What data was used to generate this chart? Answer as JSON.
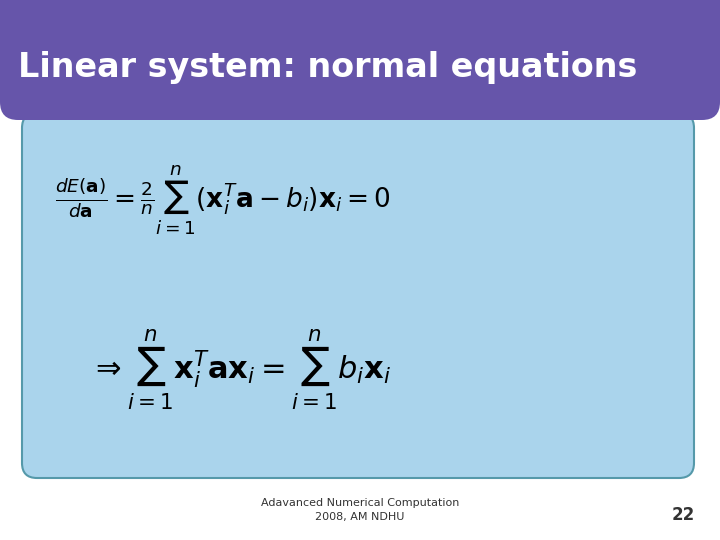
{
  "title": "Linear system: normal equations",
  "title_color": "#FFFFFF",
  "title_bg_color": "#6655AA",
  "slide_bg_color": "#FFFFFF",
  "content_bg_color": "#AAD4EC",
  "content_border_color": "#5599AA",
  "footer_text": "Adavanced Numerical Computation\n2008, AM NDHU",
  "page_number": "22",
  "eq_color": "#000000",
  "footer_color": "#333333",
  "title_fontsize": 24,
  "eq1_fontsize": 19,
  "eq2_fontsize": 22
}
